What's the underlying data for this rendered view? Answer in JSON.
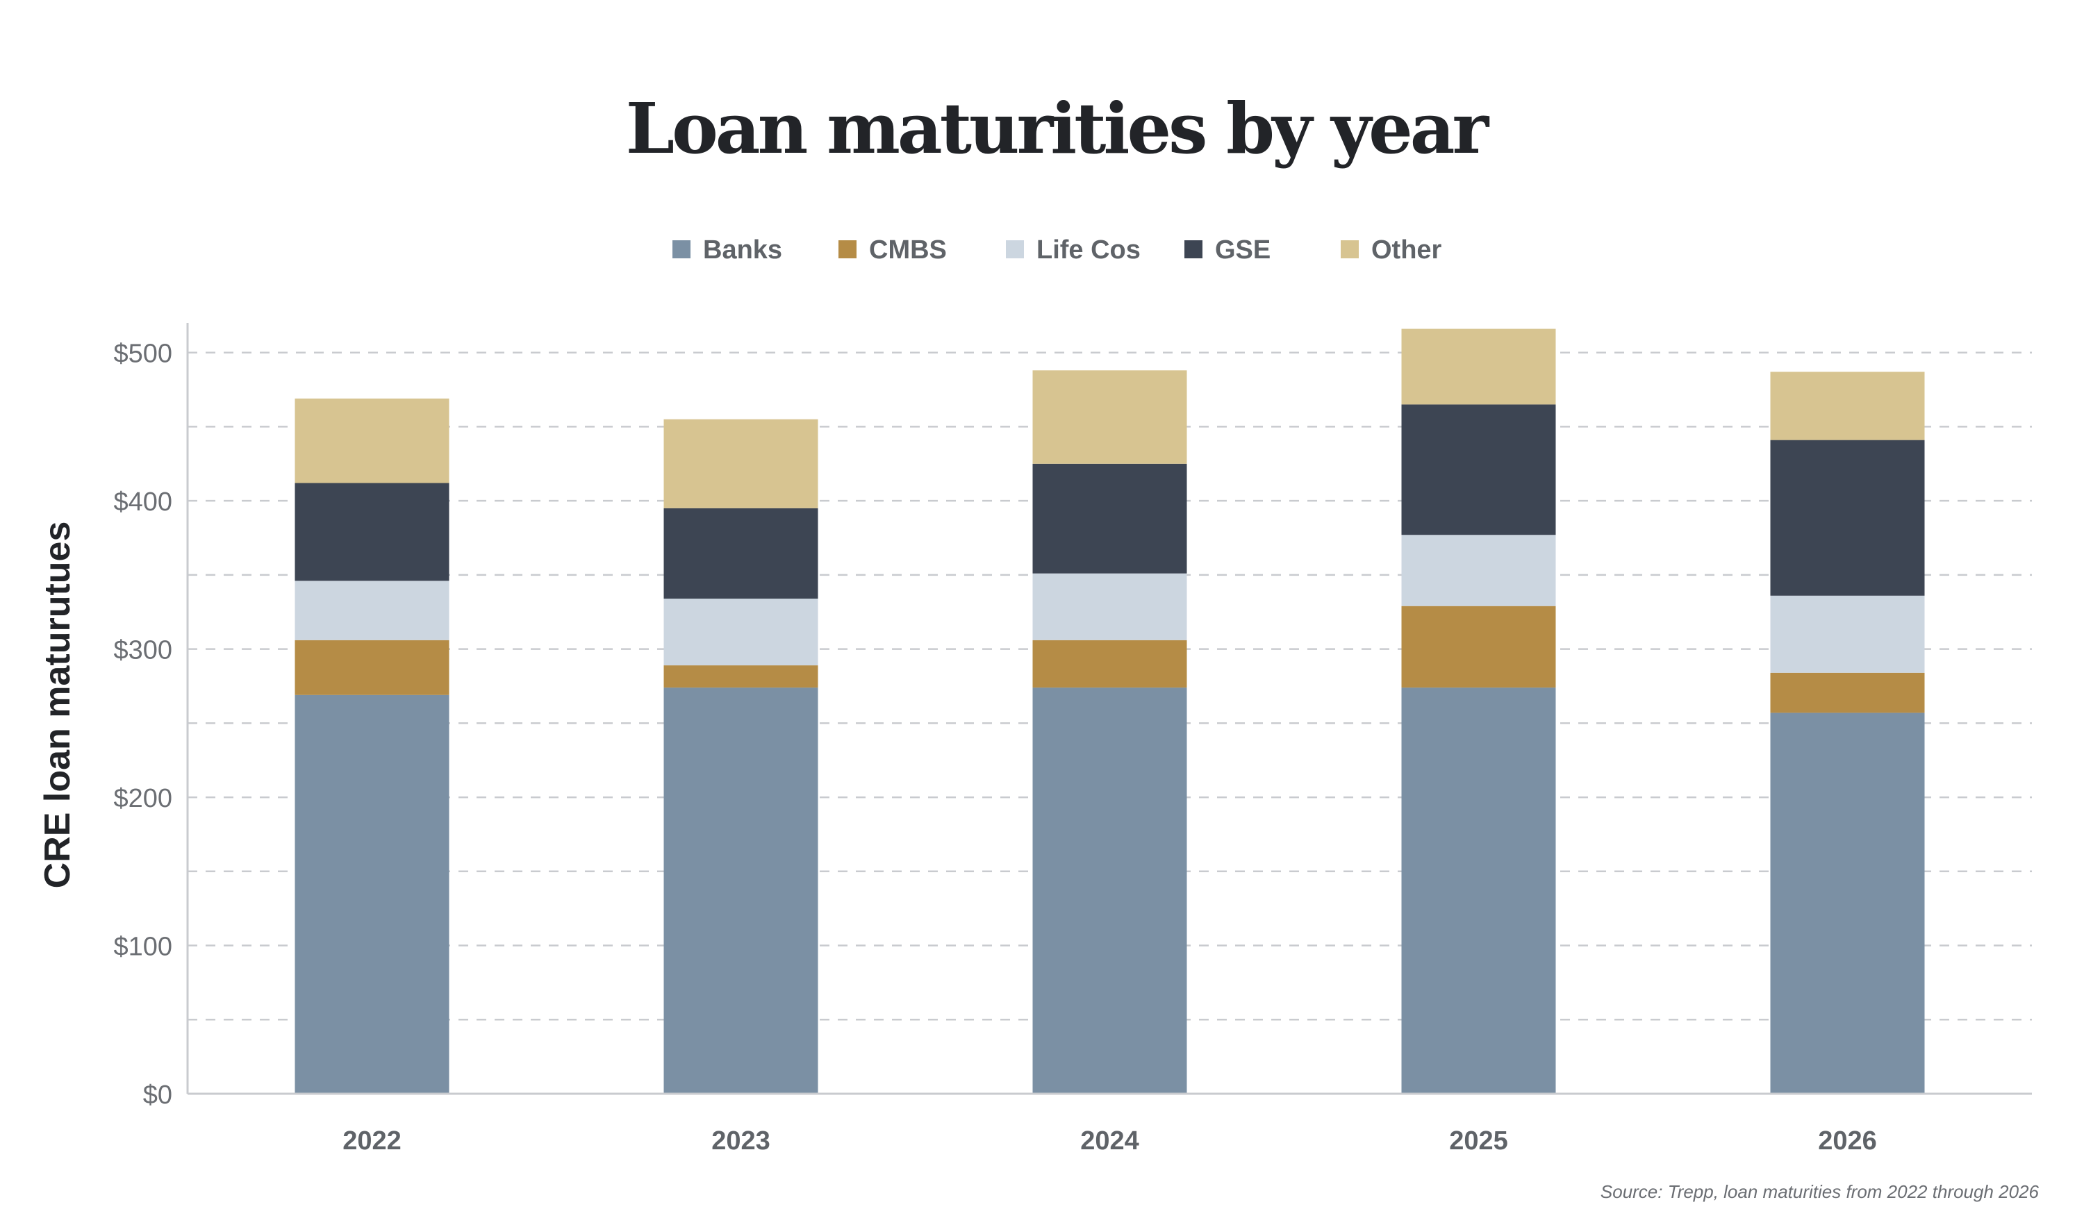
{
  "chart_data": {
    "type": "bar",
    "stacked": true,
    "title": "Loan maturities by year",
    "ylabel": "CRE loan maturutues",
    "xlabel": "",
    "source": "Source: Trepp, loan maturities from 2022 through 2026",
    "categories": [
      "2022",
      "2023",
      "2024",
      "2025",
      "2026"
    ],
    "ylim": [
      0,
      520
    ],
    "yticks": [
      0,
      100,
      200,
      300,
      400,
      500
    ],
    "ytick_labels": [
      "$0",
      "$100",
      "$200",
      "$300",
      "$400",
      "$500"
    ],
    "grid": true,
    "legend_position": "top-center",
    "series": [
      {
        "name": "Banks",
        "color": "#7b90a4",
        "values": [
          269,
          274,
          274,
          274,
          257
        ]
      },
      {
        "name": "CMBS",
        "color": "#b58c46",
        "values": [
          37,
          15,
          32,
          55,
          27
        ]
      },
      {
        "name": "Life Cos",
        "color": "#ccd6e0",
        "values": [
          40,
          45,
          45,
          48,
          52
        ]
      },
      {
        "name": "GSE",
        "color": "#3d4553",
        "values": [
          66,
          61,
          74,
          88,
          105
        ]
      },
      {
        "name": "Other",
        "color": "#d7c491",
        "values": [
          57,
          60,
          63,
          51,
          46
        ]
      }
    ]
  }
}
